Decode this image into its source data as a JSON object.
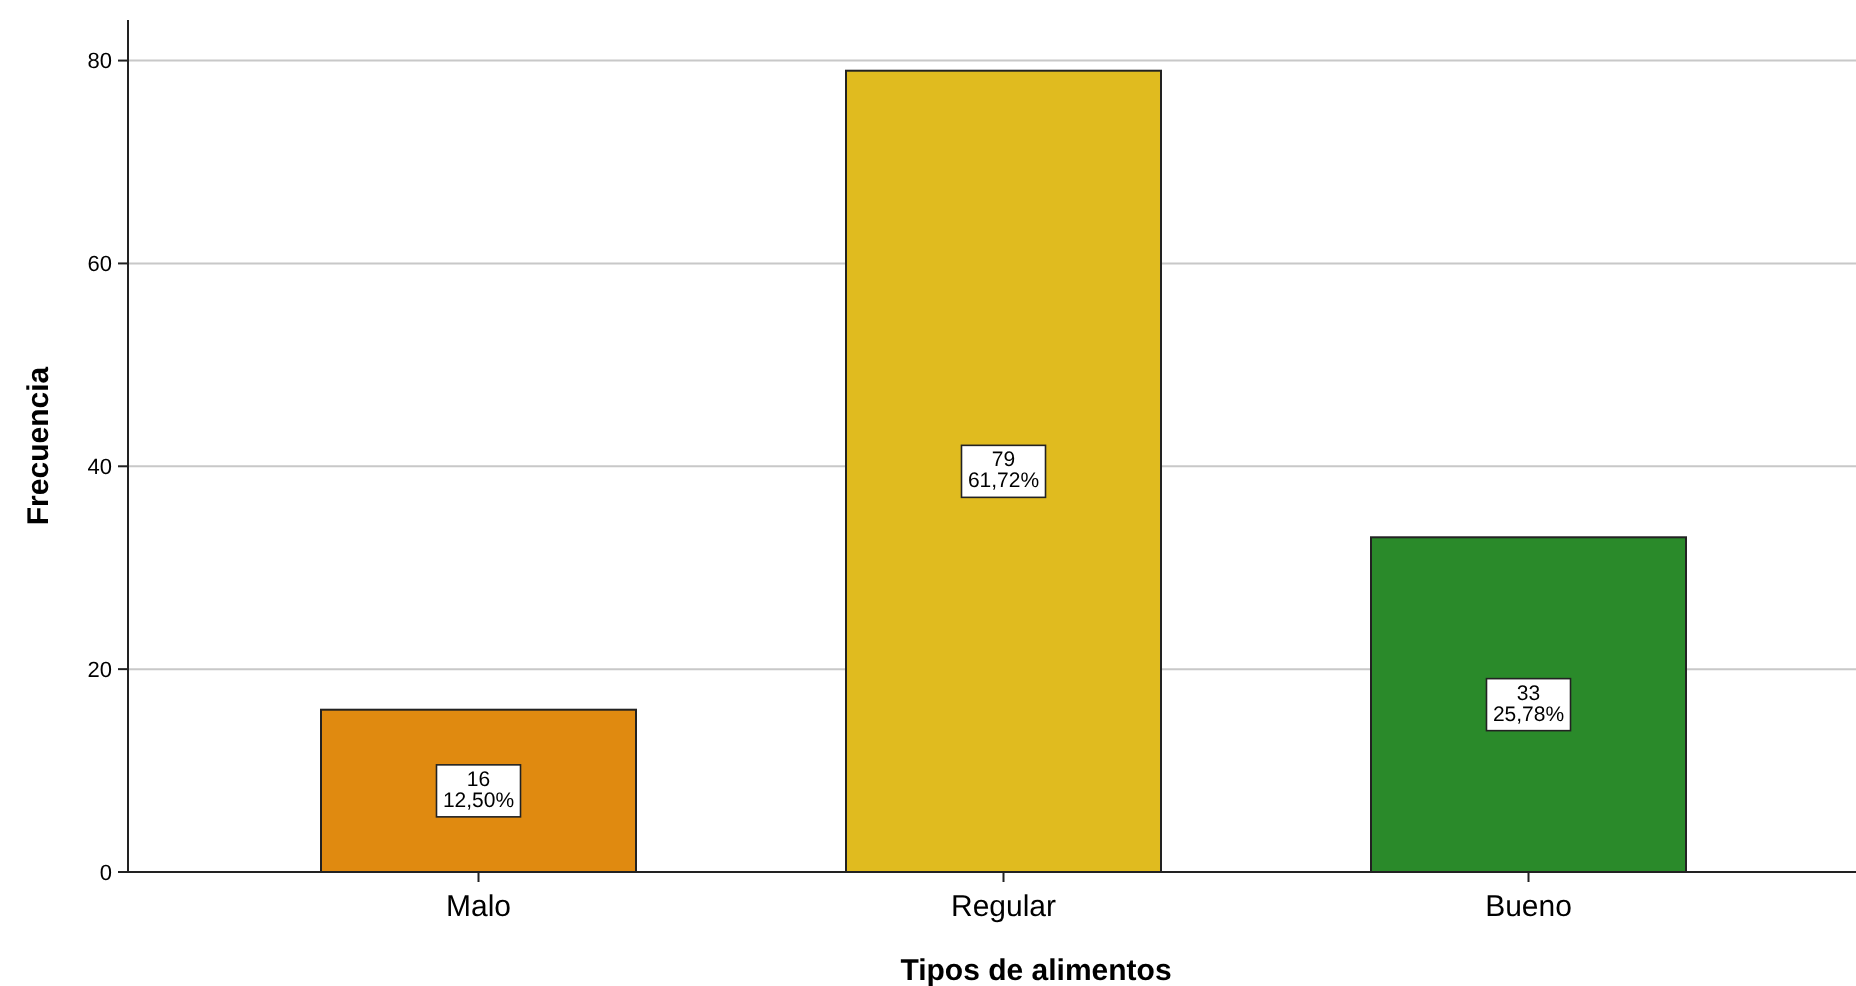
{
  "chart_data": {
    "type": "bar",
    "xlabel": "Tipos de alimentos",
    "ylabel": "Frecuencia",
    "categories": [
      "Malo",
      "Regular",
      "Bueno"
    ],
    "values": [
      16,
      79,
      33
    ],
    "colors": [
      "#e08a10",
      "#e0bb1f",
      "#2a8a2a"
    ],
    "value_labels": [
      "16\n12,50%",
      "79\n61,72%",
      "33\n25,78%"
    ],
    "ylim": [
      0,
      84
    ],
    "yticks": [
      0,
      20,
      40,
      60,
      80
    ],
    "grid": "y"
  }
}
